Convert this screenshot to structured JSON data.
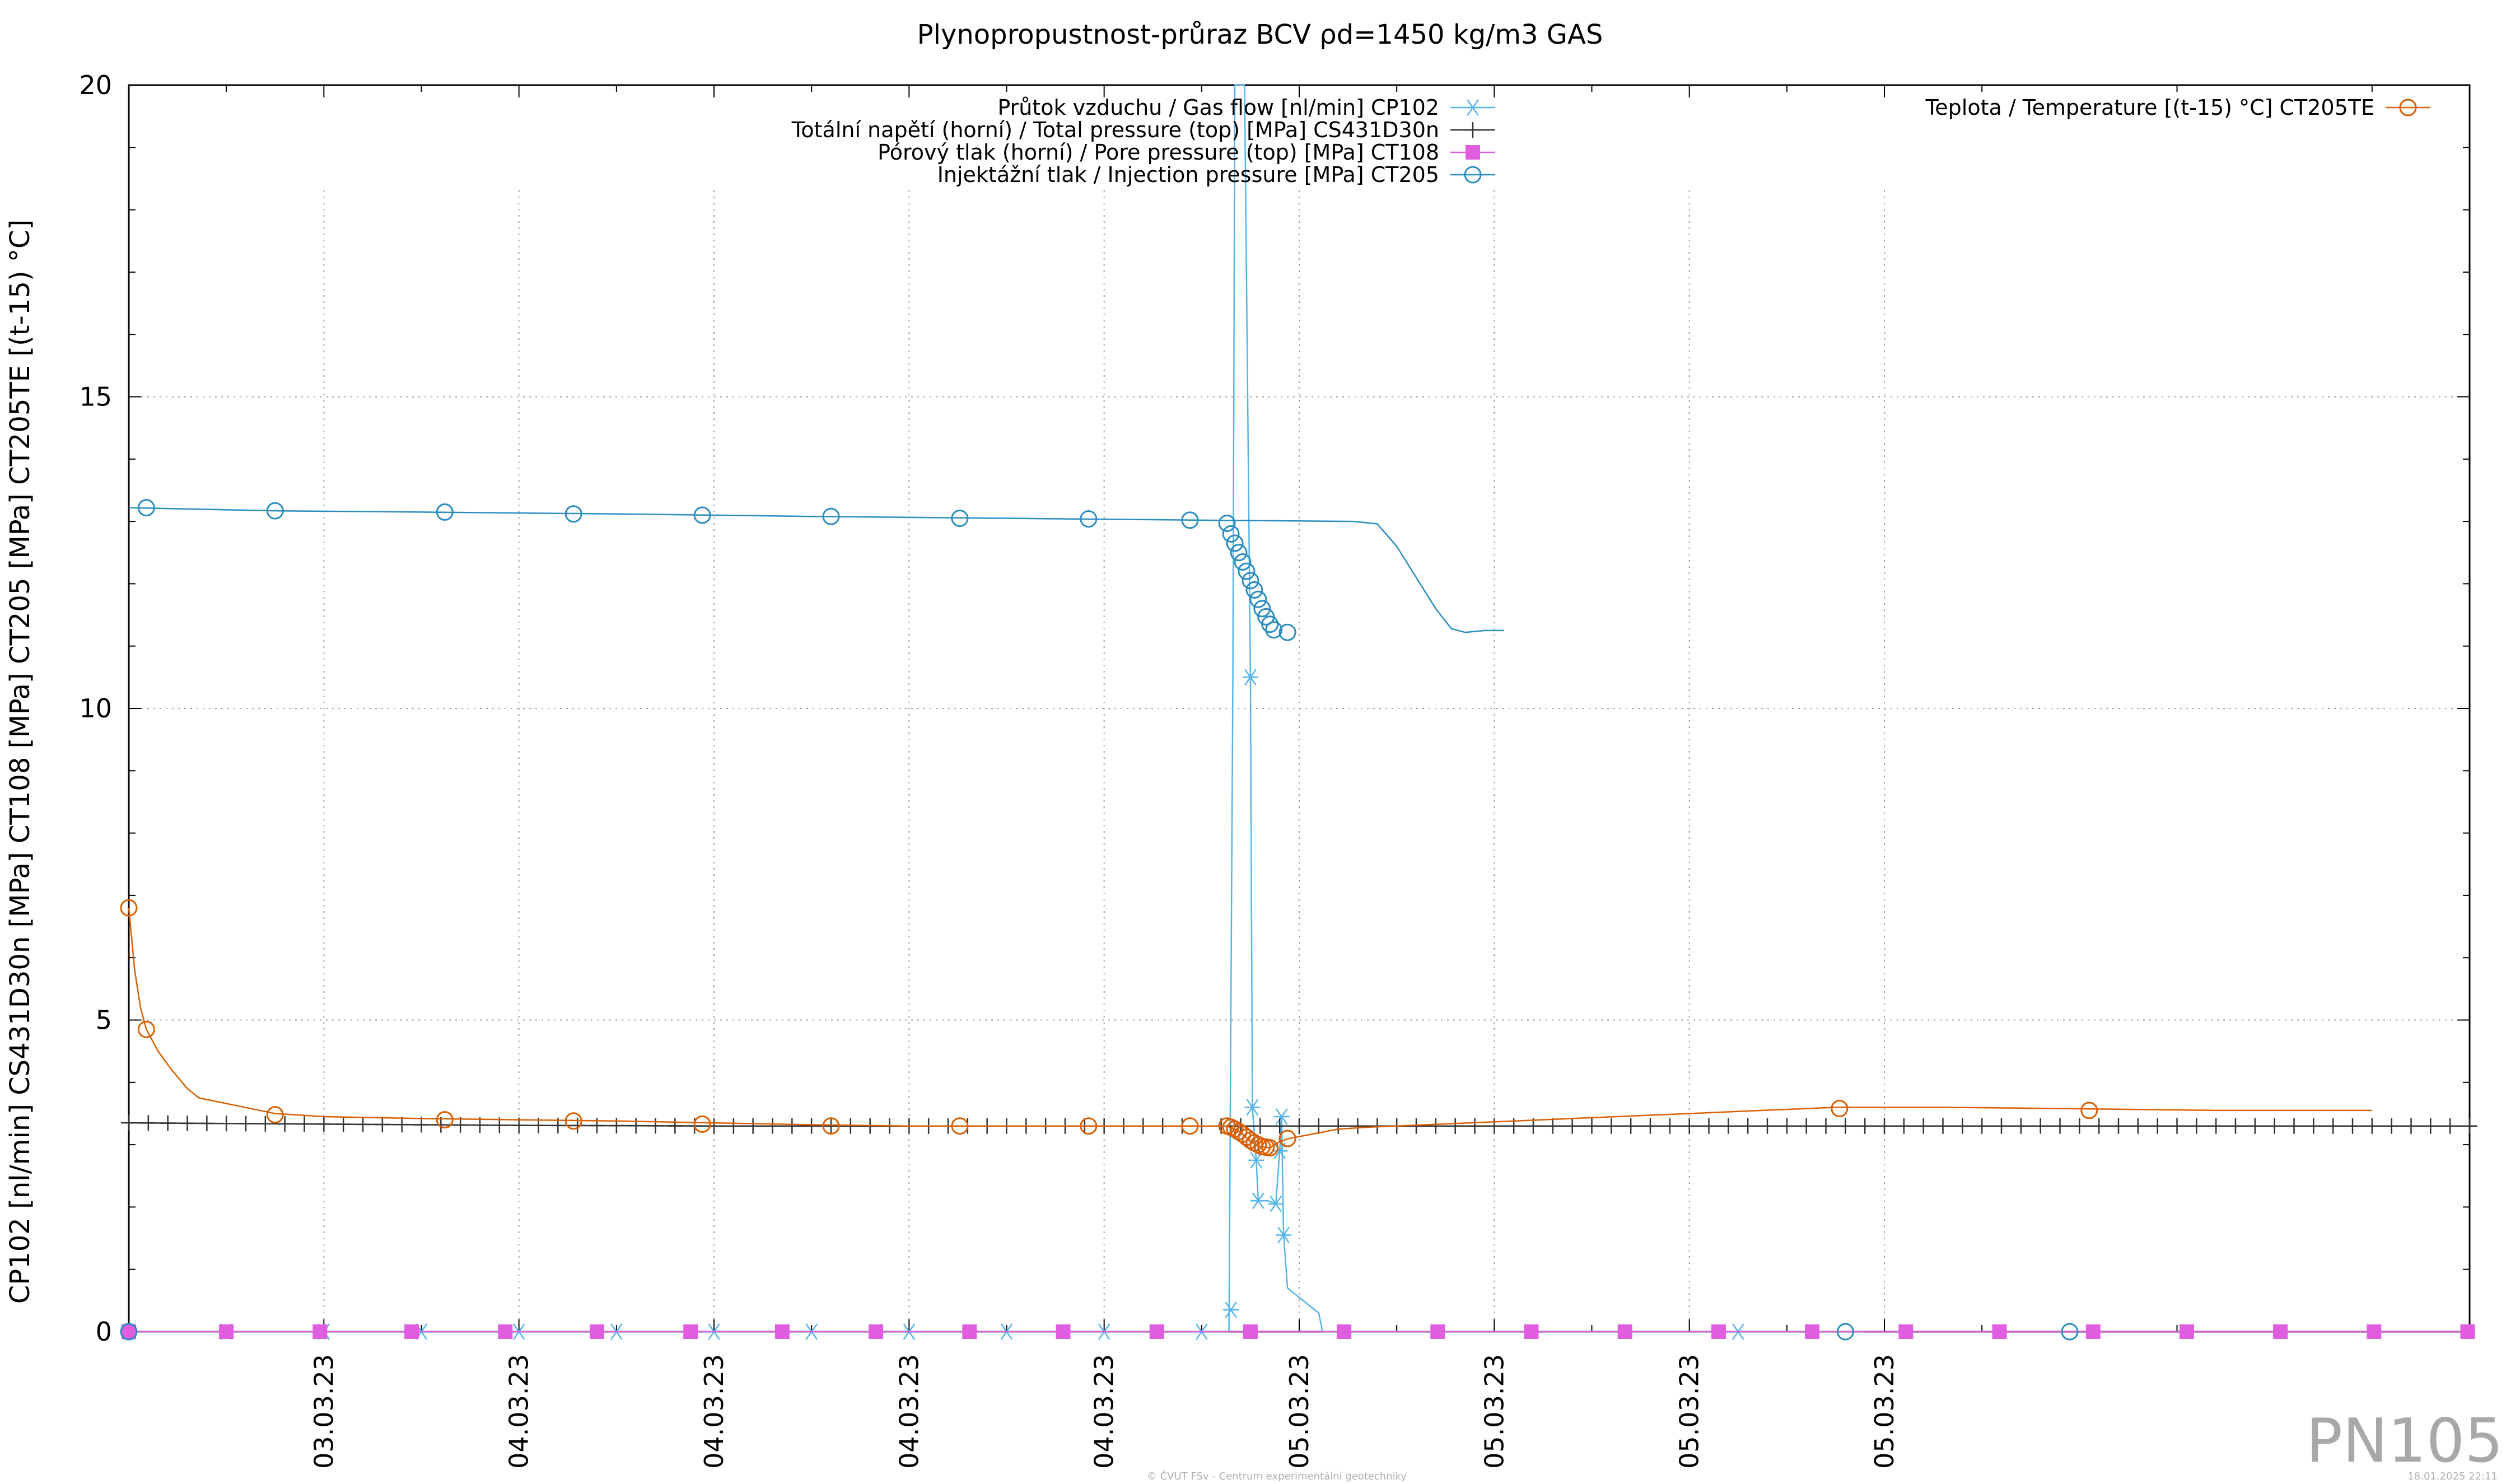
{
  "chart_data": {
    "type": "line",
    "title": "Plynopropustnost-průraz BCV ρd=1450 kg/m3 GAS",
    "ylabel": "CP102 [nl/min] CS431D30n [MPa] CT108 [MPa] CT205 [MPa] CT205TE [(t-15) °C]",
    "xlabel": "",
    "xlim": [
      0,
      12
    ],
    "ylim": [
      0,
      20
    ],
    "y_ticks": [
      0,
      5,
      10,
      15,
      20
    ],
    "x_ticks": [
      {
        "x": 1,
        "label": "03.03.23"
      },
      {
        "x": 2,
        "label": "04.03.23"
      },
      {
        "x": 3,
        "label": "04.03.23"
      },
      {
        "x": 4,
        "label": "04.03.23"
      },
      {
        "x": 5,
        "label": "04.03.23"
      },
      {
        "x": 6,
        "label": "05.03.23"
      },
      {
        "x": 7,
        "label": "05.03.23"
      },
      {
        "x": 8,
        "label": "05.03.23"
      },
      {
        "x": 9,
        "label": "05.03.23"
      }
    ],
    "grid": true,
    "legend_placement": "top",
    "series": [
      {
        "name": "Průtok vzduchu / Gas flow [nl/min] CP102",
        "key": "gasflow",
        "color": "#56b4e9",
        "marker": "asterisk",
        "points": [
          [
            0.0,
            0.0
          ],
          [
            0.5,
            0.0
          ],
          [
            1.0,
            0.0
          ],
          [
            1.5,
            0.0
          ],
          [
            2.0,
            0.0
          ],
          [
            2.5,
            0.0
          ],
          [
            3.0,
            0.0
          ],
          [
            3.5,
            0.0
          ],
          [
            4.0,
            0.0
          ],
          [
            4.5,
            0.0
          ],
          [
            5.0,
            0.0
          ],
          [
            5.5,
            0.0
          ],
          [
            5.64,
            0.0
          ],
          [
            5.66,
            10.5
          ],
          [
            5.67,
            20.0
          ],
          [
            5.72,
            20.0
          ],
          [
            5.75,
            10.5
          ],
          [
            5.76,
            3.6
          ],
          [
            5.78,
            2.75
          ],
          [
            5.79,
            2.1
          ],
          [
            5.84,
            2.1
          ],
          [
            5.88,
            2.05
          ],
          [
            5.9,
            2.9
          ],
          [
            5.91,
            3.45
          ],
          [
            5.92,
            1.55
          ],
          [
            5.94,
            0.7
          ],
          [
            6.1,
            0.3
          ],
          [
            6.12,
            0.0
          ],
          [
            6.8,
            0.0
          ],
          [
            7.5,
            0.0
          ],
          [
            8.0,
            0.0
          ],
          [
            8.5,
            0.0
          ],
          [
            8.9,
            0.0
          ]
        ],
        "marker_points": [
          [
            0.0,
            0.0
          ],
          [
            0.5,
            0.0
          ],
          [
            1.0,
            0.0
          ],
          [
            1.5,
            0.0
          ],
          [
            2.0,
            0.0
          ],
          [
            2.5,
            0.0
          ],
          [
            3.0,
            0.0
          ],
          [
            3.5,
            0.0
          ],
          [
            4.0,
            0.0
          ],
          [
            4.5,
            0.0
          ],
          [
            5.0,
            0.0
          ],
          [
            5.5,
            0.0
          ],
          [
            5.65,
            0.35
          ],
          [
            5.75,
            10.5
          ],
          [
            5.76,
            3.6
          ],
          [
            5.78,
            2.75
          ],
          [
            5.79,
            2.1
          ],
          [
            5.88,
            2.05
          ],
          [
            5.9,
            2.9
          ],
          [
            5.91,
            3.45
          ],
          [
            5.92,
            1.55
          ],
          [
            8.25,
            0.0
          ]
        ]
      },
      {
        "name": "Totální napětí (horní) / Total pressure (top) [MPa] CS431D30n",
        "key": "totalpressure",
        "color": "#333333",
        "marker": "plus",
        "points": [
          [
            0.0,
            3.35
          ],
          [
            1.0,
            3.33
          ],
          [
            2.0,
            3.31
          ],
          [
            3.0,
            3.3
          ],
          [
            4.0,
            3.3
          ],
          [
            5.0,
            3.3
          ],
          [
            5.5,
            3.3
          ],
          [
            5.9,
            3.3
          ],
          [
            6.5,
            3.3
          ],
          [
            7.5,
            3.3
          ],
          [
            8.5,
            3.3
          ],
          [
            9.5,
            3.3
          ],
          [
            10.5,
            3.3
          ],
          [
            11.5,
            3.3
          ],
          [
            12.0,
            3.3
          ]
        ],
        "marker_spacing": 0.1
      },
      {
        "name": "Pórový tlak (horní) / Pore pressure (top) [MPa] CT108",
        "key": "porepressure",
        "color": "#e05de0",
        "marker": "square",
        "points": [
          [
            0.0,
            0.0
          ],
          [
            12.0,
            0.0
          ]
        ],
        "marker_points": [
          [
            0.0,
            0.0
          ],
          [
            0.5,
            0.0
          ],
          [
            0.98,
            0.0
          ],
          [
            1.45,
            0.0
          ],
          [
            1.93,
            0.0
          ],
          [
            2.4,
            0.0
          ],
          [
            2.88,
            0.0
          ],
          [
            3.35,
            0.0
          ],
          [
            3.83,
            0.0
          ],
          [
            4.31,
            0.0
          ],
          [
            4.79,
            0.0
          ],
          [
            5.27,
            0.0
          ],
          [
            5.75,
            0.0
          ],
          [
            6.23,
            0.0
          ],
          [
            6.71,
            0.0
          ],
          [
            7.19,
            0.0
          ],
          [
            7.67,
            0.0
          ],
          [
            8.15,
            0.0
          ],
          [
            8.63,
            0.0
          ],
          [
            9.11,
            0.0
          ],
          [
            9.59,
            0.0
          ],
          [
            10.07,
            0.0
          ],
          [
            10.55,
            0.0
          ],
          [
            11.03,
            0.0
          ],
          [
            11.51,
            0.0
          ],
          [
            11.99,
            0.0
          ]
        ]
      },
      {
        "name": "Injektážní tlak / Injection pressure [MPa] CT205",
        "key": "injection",
        "color": "#2b8cbe",
        "marker": "circle",
        "points": [
          [
            0.0,
            13.22
          ],
          [
            0.75,
            13.17
          ],
          [
            1.5,
            13.15
          ],
          [
            2.5,
            13.12
          ],
          [
            3.5,
            13.08
          ],
          [
            4.5,
            13.05
          ],
          [
            5.5,
            13.02
          ],
          [
            6.28,
            13.0
          ],
          [
            6.4,
            12.96
          ],
          [
            6.5,
            12.6
          ],
          [
            6.6,
            12.1
          ],
          [
            6.7,
            11.6
          ],
          [
            6.78,
            11.28
          ],
          [
            6.85,
            11.22
          ],
          [
            6.95,
            11.25
          ],
          [
            7.05,
            11.25
          ]
        ],
        "marker_points": [
          [
            0.09,
            13.22
          ],
          [
            0.75,
            13.17
          ],
          [
            1.62,
            13.15
          ],
          [
            2.28,
            13.12
          ],
          [
            2.94,
            13.1
          ],
          [
            3.6,
            13.08
          ],
          [
            4.26,
            13.05
          ],
          [
            4.92,
            13.04
          ],
          [
            5.44,
            13.02
          ],
          [
            5.63,
            12.97
          ],
          [
            5.65,
            12.8
          ],
          [
            5.67,
            12.65
          ],
          [
            5.69,
            12.5
          ],
          [
            5.71,
            12.35
          ],
          [
            5.73,
            12.2
          ],
          [
            5.75,
            12.05
          ],
          [
            5.77,
            11.9
          ],
          [
            5.79,
            11.75
          ],
          [
            5.81,
            11.6
          ],
          [
            5.83,
            11.47
          ],
          [
            5.85,
            11.35
          ],
          [
            5.87,
            11.26
          ],
          [
            5.94,
            11.22
          ],
          [
            8.8,
            0.0
          ],
          [
            9.95,
            0.0
          ],
          [
            0.0,
            0.0
          ]
        ]
      }
    ],
    "series_right_legend": [
      {
        "name": "Teplota / Temperature [(t-15) °C] CT205TE",
        "key": "temperature",
        "color": "#d95f02",
        "marker": "circle",
        "points": [
          [
            0.0,
            6.8
          ],
          [
            0.03,
            5.8
          ],
          [
            0.06,
            5.2
          ],
          [
            0.09,
            4.85
          ],
          [
            0.15,
            4.5
          ],
          [
            0.22,
            4.2
          ],
          [
            0.3,
            3.9
          ],
          [
            0.36,
            3.75
          ],
          [
            0.75,
            3.5
          ],
          [
            1.0,
            3.45
          ],
          [
            1.5,
            3.42
          ],
          [
            2.0,
            3.4
          ],
          [
            2.5,
            3.38
          ],
          [
            3.0,
            3.35
          ],
          [
            3.5,
            3.32
          ],
          [
            4.0,
            3.3
          ],
          [
            4.5,
            3.3
          ],
          [
            5.0,
            3.3
          ],
          [
            5.5,
            3.3
          ],
          [
            5.63,
            3.3
          ],
          [
            5.7,
            3.2
          ],
          [
            5.75,
            3.05
          ],
          [
            5.8,
            2.97
          ],
          [
            5.85,
            2.95
          ],
          [
            5.9,
            3.05
          ],
          [
            5.95,
            3.1
          ],
          [
            6.2,
            3.25
          ],
          [
            6.35,
            3.28
          ],
          [
            8.75,
            3.6
          ],
          [
            9.3,
            3.6
          ],
          [
            9.9,
            3.58
          ],
          [
            10.7,
            3.55
          ],
          [
            11.5,
            3.55
          ]
        ],
        "marker_points": [
          [
            0.0,
            6.8
          ],
          [
            0.09,
            4.85
          ],
          [
            0.75,
            3.48
          ],
          [
            1.62,
            3.4
          ],
          [
            2.28,
            3.38
          ],
          [
            2.94,
            3.33
          ],
          [
            3.6,
            3.3
          ],
          [
            4.26,
            3.3
          ],
          [
            4.92,
            3.3
          ],
          [
            5.44,
            3.3
          ],
          [
            5.63,
            3.3
          ],
          [
            5.65,
            3.28
          ],
          [
            5.67,
            3.25
          ],
          [
            5.69,
            3.21
          ],
          [
            5.71,
            3.17
          ],
          [
            5.73,
            3.12
          ],
          [
            5.75,
            3.07
          ],
          [
            5.77,
            3.03
          ],
          [
            5.79,
            3.0
          ],
          [
            5.81,
            2.97
          ],
          [
            5.83,
            2.96
          ],
          [
            5.85,
            2.95
          ],
          [
            5.94,
            3.1
          ],
          [
            8.77,
            3.58
          ],
          [
            10.05,
            3.55
          ]
        ]
      }
    ]
  },
  "watermark": "PN105",
  "footer_left": "© ČVUT FSv - Centrum experimentální geotechniky",
  "footer_right": "18.01.2025 22:11"
}
